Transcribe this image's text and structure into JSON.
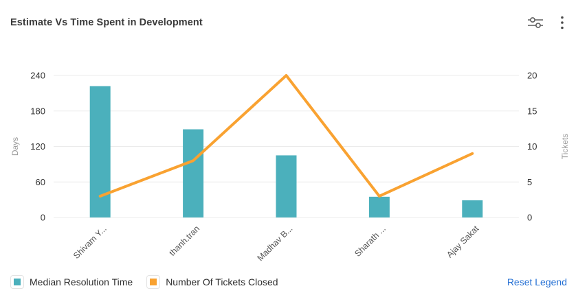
{
  "header": {
    "title": "Estimate Vs Time Spent in Development"
  },
  "toolbar": {
    "settings_icon": "sliders-icon",
    "menu_icon": "kebab-menu-icon"
  },
  "chart_data": {
    "type": "bar+line combo",
    "categories": [
      "Shivam Y...",
      "thanh.tran",
      "Madhav B...",
      "Sharath ...",
      "Ajay Sakat"
    ],
    "series": [
      {
        "name": "Median Resolution Time",
        "type": "bar",
        "axis": "left",
        "color": "#4bb0bc",
        "values": [
          222,
          149,
          105,
          35,
          29
        ]
      },
      {
        "name": "Number Of Tickets Closed",
        "type": "line",
        "axis": "right",
        "color": "#f9a231",
        "values": [
          3,
          8,
          20,
          3,
          9
        ]
      }
    ],
    "left_axis": {
      "label": "Days",
      "ticks": [
        0,
        60,
        120,
        180,
        240
      ],
      "range": [
        0,
        240
      ]
    },
    "right_axis": {
      "label": "Tickets",
      "ticks": [
        0,
        5,
        10,
        15,
        20
      ],
      "range": [
        0,
        20
      ]
    },
    "grid": true,
    "legend_position": "bottom"
  },
  "legend": {
    "items": [
      {
        "label": "Median Resolution Time",
        "color": "#4bb0bc"
      },
      {
        "label": "Number Of Tickets Closed",
        "color": "#f9a231"
      }
    ],
    "reset_label": "Reset Legend"
  },
  "colors": {
    "bar_teal": "#4bb0bc",
    "line_orange": "#f9a231",
    "gridline": "#ebebeb",
    "tick_text": "#333333",
    "axis_name_text": "#9b9b9b",
    "x_label_text": "#555555",
    "reset_link_blue": "#2570d4",
    "title_text": "#3b3b3b"
  }
}
